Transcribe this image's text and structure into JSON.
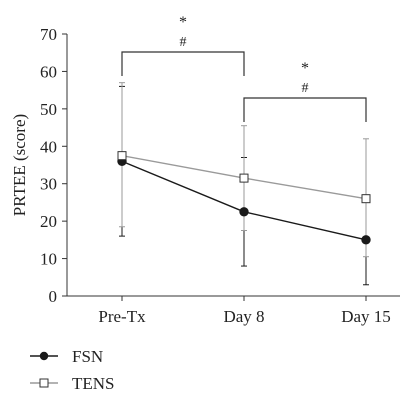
{
  "chart_data": {
    "type": "line",
    "ylabel": "PRTEE (score)",
    "xlabel": "",
    "categories": [
      "Pre-Tx",
      "Day 8",
      "Day 15"
    ],
    "ylim": [
      0,
      70
    ],
    "yticks": [
      0,
      10,
      20,
      30,
      40,
      50,
      60,
      70
    ],
    "grid": false,
    "legend_position": "bottom-left",
    "series": [
      {
        "name": "FSN",
        "values": [
          36,
          22.5,
          15
        ],
        "error_low": [
          16,
          8,
          3
        ],
        "error_high": [
          56,
          37,
          27
        ],
        "marker": "filled-circle",
        "color": "#1a1a1a"
      },
      {
        "name": "TENS",
        "values": [
          37.5,
          31.5,
          26
        ],
        "error_low": [
          18.5,
          17.5,
          10.5
        ],
        "error_high": [
          57,
          45.5,
          42
        ],
        "marker": "open-square",
        "color": "#9a9a9a"
      }
    ],
    "significance": [
      {
        "from": 0,
        "to": 1,
        "symbols": [
          "*",
          "#"
        ]
      },
      {
        "from": 1,
        "to": 2,
        "symbols": [
          "*",
          "#"
        ]
      }
    ]
  }
}
